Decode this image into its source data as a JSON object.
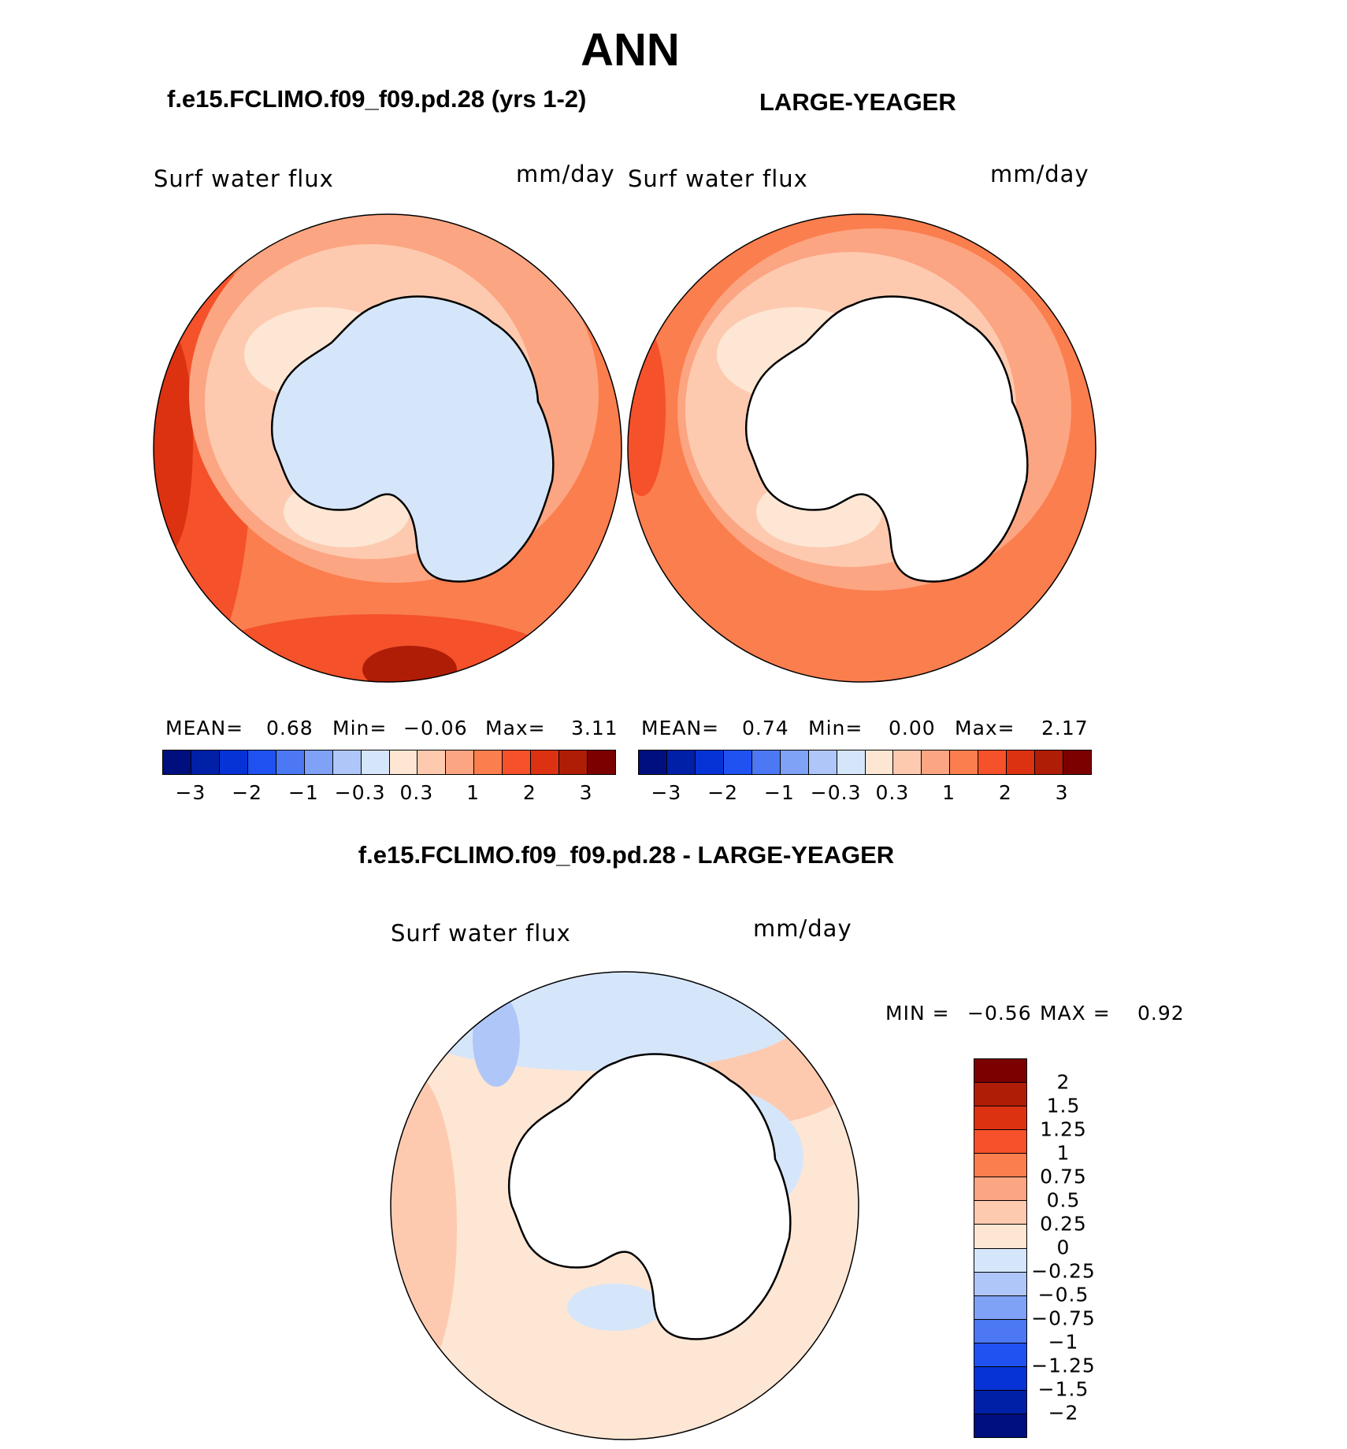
{
  "title": "ANN",
  "panels": [
    {
      "subtitle": "f.e15.FCLIMO.f09_f09.pd.28 (yrs 1-2)",
      "variable": "Surf water flux",
      "units": "mm/day",
      "stats": {
        "mean_label": "MEAN=",
        "mean": "0.68",
        "min_label": "Min=",
        "min": "−0.06",
        "max_label": "Max=",
        "max": "3.11"
      }
    },
    {
      "subtitle": "LARGE-YEAGER",
      "variable": "Surf water flux",
      "units": "mm/day",
      "stats": {
        "mean_label": "MEAN=",
        "mean": "0.74",
        "min_label": "Min=",
        "min": "0.00",
        "max_label": "Max=",
        "max": "2.17"
      }
    },
    {
      "subtitle": "f.e15.FCLIMO.f09_f09.pd.28 - LARGE-YEAGER",
      "variable": "Surf water flux",
      "units": "mm/day",
      "stats": {
        "min_label": "MIN =",
        "min": "−0.56",
        "max_label": "MAX =",
        "max": "0.92"
      }
    }
  ],
  "colorbar_horizontal": {
    "colors": [
      "#000f7e",
      "#0020a8",
      "#0633d6",
      "#1f52f0",
      "#4c78f3",
      "#7fa1f6",
      "#afc6f8",
      "#d6e6fa",
      "#fde6d4",
      "#fdcab0",
      "#fca582",
      "#fb7e4e",
      "#f5512a",
      "#dc3212",
      "#b01d07",
      "#7c0000"
    ],
    "ticks": [
      "−3",
      "−2",
      "−1",
      "−0.3",
      "0.3",
      "1",
      "2",
      "3"
    ]
  },
  "colorbar_vertical": {
    "colors": [
      "#7c0000",
      "#b01d07",
      "#dc3212",
      "#f5512a",
      "#fb7e4e",
      "#fca582",
      "#fdcab0",
      "#fde6d4",
      "#d6e6fa",
      "#afc6f8",
      "#7fa1f6",
      "#4c78f3",
      "#1f52f0",
      "#0633d6",
      "#0020a8",
      "#000f7e"
    ],
    "ticks": [
      "2",
      "1.5",
      "1.25",
      "1",
      "0.75",
      "0.5",
      "0.25",
      "0",
      "−0.25",
      "−0.5",
      "−0.75",
      "−1",
      "−1.25",
      "−1.5",
      "−2"
    ]
  },
  "map_colors": {
    "ice_model": "#d6e6fa",
    "ice_obs": "#ffffff",
    "coast": "#000000"
  }
}
